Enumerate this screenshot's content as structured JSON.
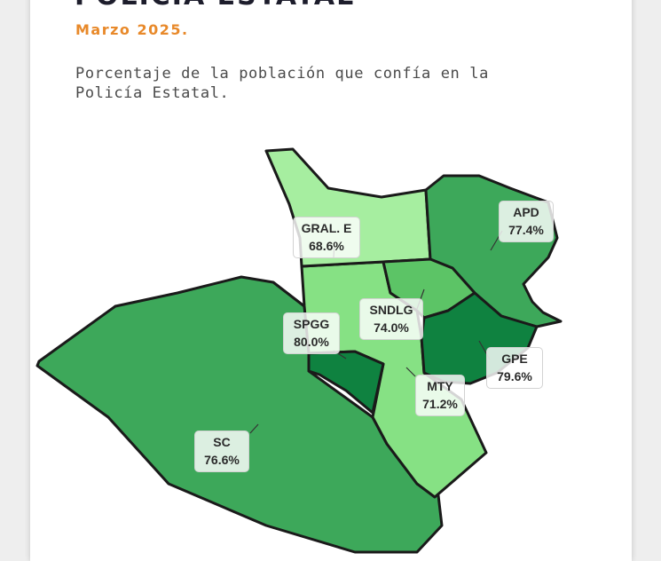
{
  "header": {
    "title": "POLICÍA ESTATAL",
    "date": "Marzo 2025.",
    "subtitle": "Porcentaje de la población que confía en la Policía Estatal."
  },
  "colors": {
    "title": "#1d1d2c",
    "date": "#e8892a",
    "lightest": "#a6eea0",
    "light": "#86e184",
    "mid": "#5cc466",
    "medium": "#3da85a",
    "dark": "#2e9a52",
    "darkest": "#0f8240",
    "border": "#1a1a1a"
  },
  "municipalities": [
    {
      "code": "GRAL. E",
      "value": "68.6%"
    },
    {
      "code": "APD",
      "value": "77.4%"
    },
    {
      "code": "SNDLG",
      "value": "74.0%"
    },
    {
      "code": "SPGG",
      "value": "80.0%"
    },
    {
      "code": "GPE",
      "value": "79.6%"
    },
    {
      "code": "MTY",
      "value": "71.2%"
    },
    {
      "code": "SC",
      "value": "76.6%"
    }
  ]
}
